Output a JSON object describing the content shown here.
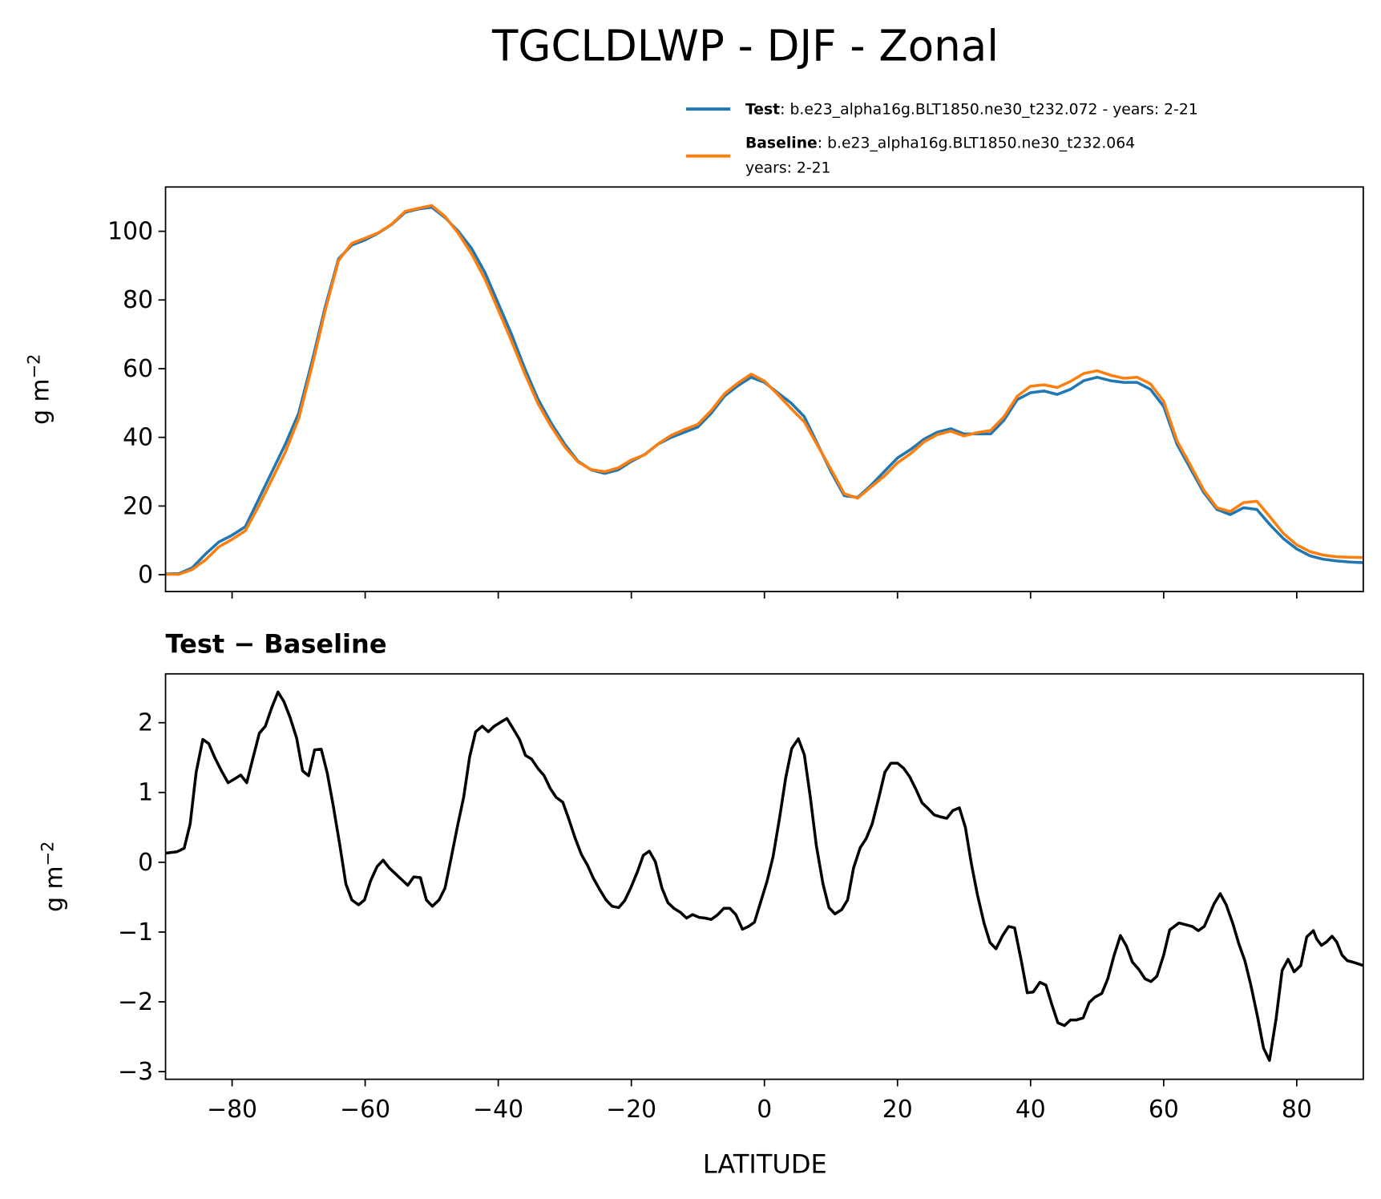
{
  "chart_data": [
    {
      "type": "line",
      "title": "TGCLDLWP - DJF - Zonal",
      "ylabel": "g m",
      "ylabel_exponent": "−2",
      "x": [
        -90,
        -88,
        -86,
        -84,
        -82,
        -80,
        -78,
        -76,
        -74,
        -72,
        -70,
        -68,
        -66,
        -64,
        -62,
        -60,
        -58,
        -56,
        -54,
        -52,
        -50,
        -48,
        -46,
        -44,
        -42,
        -40,
        -38,
        -36,
        -34,
        -32,
        -30,
        -28,
        -26,
        -24,
        -22,
        -20,
        -18,
        -16,
        -14,
        -12,
        -10,
        -8,
        -6,
        -4,
        -2,
        0,
        2,
        4,
        6,
        8,
        10,
        12,
        14,
        16,
        18,
        20,
        22,
        24,
        26,
        28,
        30,
        32,
        34,
        36,
        38,
        40,
        42,
        44,
        46,
        48,
        50,
        52,
        54,
        56,
        58,
        60,
        62,
        64,
        66,
        68,
        70,
        72,
        74,
        76,
        78,
        80,
        82,
        84,
        86,
        88,
        90
      ],
      "series": [
        {
          "name": "Test",
          "legend_detail": [
            ": b.e23_alpha16g.BLT1850.ne30_t232.072 - years: 2-21"
          ],
          "color": "#1f77b4",
          "values": [
            0.2,
            0.3,
            2,
            6,
            9.5,
            11.5,
            14,
            22,
            30,
            38,
            47,
            62,
            78,
            92,
            96,
            97.5,
            99.5,
            102,
            105.5,
            106.5,
            107,
            104,
            100,
            95,
            88,
            79,
            70,
            60,
            51,
            44,
            38,
            33,
            30.5,
            29.5,
            30.5,
            33,
            35,
            38,
            40,
            41.5,
            43,
            47,
            52,
            55,
            57.5,
            56,
            53,
            50,
            46,
            38,
            30,
            23,
            22.5,
            26,
            30,
            34,
            36.5,
            39.5,
            41.5,
            42.5,
            41,
            41,
            41,
            45,
            51,
            53,
            53.5,
            52.5,
            54,
            56.5,
            57.5,
            56.5,
            56,
            56,
            54,
            49,
            38,
            31,
            24,
            19,
            17.5,
            19.5,
            19,
            14.5,
            10.5,
            7.5,
            5.5,
            4.5,
            4,
            3.7,
            3.5
          ]
        },
        {
          "name": "Baseline",
          "legend_detail": [
            ": b.e23_alpha16g.BLT1850.ne30_t232.064",
            "years: 2-21"
          ],
          "color": "#ff7f0e",
          "values": [
            0.1,
            0.1,
            1.5,
            4.3,
            8.1,
            10.3,
            12.8,
            20,
            27.8,
            35.7,
            45.4,
            60.6,
            77,
            91.5,
            96.5,
            98,
            99.6,
            102.1,
            105.8,
            106.7,
            107.5,
            104.3,
            99.4,
            93.4,
            86.1,
            77.1,
            68,
            58.5,
            49.7,
            43,
            37.2,
            32.8,
            30.6,
            30,
            31.1,
            33.4,
            34.9,
            38.1,
            40.6,
            42.3,
            43.8,
            47.8,
            52.7,
            55.8,
            58.4,
            56.4,
            52.5,
            48.4,
            44.5,
            37.6,
            30.7,
            23.6,
            22.3,
            25.5,
            28.7,
            32.6,
            35.3,
            38.7,
            40.8,
            41.8,
            40.4,
            41.4,
            42,
            46,
            52,
            54.9,
            55.3,
            54.5,
            56.3,
            58.6,
            59.4,
            58.1,
            57.2,
            57.5,
            55.6,
            50.5,
            39,
            32,
            24.7,
            19.5,
            18.4,
            21,
            21.4,
            16.8,
            12,
            8.7,
            6.7,
            5.7,
            5.2,
            5.1,
            5
          ]
        }
      ],
      "xlim": [
        -90,
        90
      ],
      "xticks": [
        -80,
        -60,
        -40,
        -20,
        0,
        20,
        40,
        60,
        80
      ],
      "ylim": [
        -4.9,
        112.9
      ],
      "yticks": [
        0,
        20,
        40,
        60,
        80,
        100
      ]
    },
    {
      "type": "line",
      "title": "Test − Baseline",
      "xlabel": "LATITUDE",
      "ylabel": "g m",
      "ylabel_exponent": "−2",
      "x": [
        -90,
        -88.3,
        -87.2,
        -86.3,
        -85.4,
        -84.4,
        -83.5,
        -82.6,
        -81.6,
        -80.6,
        -79.7,
        -78.7,
        -77.8,
        -76.9,
        -75.9,
        -75,
        -74.1,
        -73.1,
        -72.2,
        -71.3,
        -70.3,
        -69.4,
        -68.5,
        -67.6,
        -66.6,
        -65.7,
        -64.8,
        -63.8,
        -62.9,
        -62,
        -61,
        -60.1,
        -59.2,
        -58.2,
        -57.3,
        -56.4,
        -55.5,
        -54.5,
        -53.6,
        -52.7,
        -51.7,
        -50.8,
        -49.9,
        -48.9,
        -48,
        -47.1,
        -46.1,
        -45.2,
        -44.3,
        -43.4,
        -42.4,
        -41.5,
        -40.6,
        -39.6,
        -38.7,
        -37.8,
        -36.8,
        -35.9,
        -35,
        -34,
        -33.1,
        -32.2,
        -31.3,
        -30.3,
        -29.4,
        -28.5,
        -27.5,
        -26.6,
        -25.7,
        -24.7,
        -23.8,
        -22.9,
        -21.9,
        -21,
        -20.1,
        -19.1,
        -18.2,
        -17.3,
        -16.4,
        -15.4,
        -14.5,
        -13.6,
        -12.6,
        -11.7,
        -10.8,
        -9.8,
        -8.9,
        -8,
        -7,
        -6.1,
        -5.2,
        -4.3,
        -3.3,
        -2.4,
        -1.5,
        -0.5,
        0.4,
        1.3,
        2.3,
        3.2,
        4.1,
        5.1,
        6,
        6.9,
        7.8,
        8.8,
        9.7,
        10.6,
        11.6,
        12.5,
        13.4,
        14.4,
        15.3,
        16.2,
        17.2,
        18.1,
        19,
        20,
        20.9,
        21.8,
        22.7,
        23.7,
        24.6,
        25.5,
        26.5,
        27.4,
        28.3,
        29.3,
        30.2,
        31.1,
        32,
        33,
        33.9,
        34.8,
        35.8,
        36.7,
        37.6,
        38.6,
        39.5,
        40.4,
        41.4,
        42.3,
        43.2,
        44.1,
        45.1,
        46,
        46.9,
        47.9,
        48.8,
        49.7,
        50.7,
        51.6,
        52.5,
        53.5,
        54.4,
        55.3,
        56.3,
        57.2,
        58.1,
        59,
        60,
        60.9,
        62.3,
        64.3,
        65.2,
        66.1,
        67.6,
        68.5,
        69.4,
        70.4,
        71.3,
        72.2,
        73.1,
        74.1,
        75,
        75.9,
        76.9,
        77.8,
        78.7,
        79.6,
        80.6,
        81.5,
        82.5,
        83,
        83.7,
        84.5,
        85.3,
        86,
        86.8,
        87.6,
        88.4,
        90
      ],
      "series": [
        {
          "name": "Test − Baseline",
          "color": "#000000",
          "values": [
            0.13,
            0.15,
            0.2,
            0.55,
            1.29,
            1.76,
            1.7,
            1.5,
            1.31,
            1.14,
            1.19,
            1.25,
            1.14,
            1.48,
            1.85,
            1.95,
            2.2,
            2.44,
            2.3,
            2.08,
            1.78,
            1.31,
            1.24,
            1.61,
            1.62,
            1.28,
            0.81,
            0.24,
            -0.31,
            -0.54,
            -0.61,
            -0.54,
            -0.27,
            -0.06,
            0.03,
            -0.08,
            -0.16,
            -0.25,
            -0.33,
            -0.21,
            -0.22,
            -0.54,
            -0.63,
            -0.54,
            -0.37,
            0.05,
            0.53,
            0.93,
            1.51,
            1.87,
            1.95,
            1.87,
            1.95,
            2.01,
            2.06,
            1.92,
            1.76,
            1.53,
            1.48,
            1.34,
            1.24,
            1.06,
            0.93,
            0.86,
            0.62,
            0.36,
            0.11,
            -0.04,
            -0.23,
            -0.4,
            -0.54,
            -0.63,
            -0.65,
            -0.55,
            -0.37,
            -0.14,
            0.1,
            0.16,
            0.01,
            -0.37,
            -0.58,
            -0.66,
            -0.72,
            -0.8,
            -0.75,
            -0.79,
            -0.8,
            -0.82,
            -0.75,
            -0.66,
            -0.66,
            -0.75,
            -0.96,
            -0.92,
            -0.86,
            -0.55,
            -0.27,
            0.08,
            0.65,
            1.21,
            1.63,
            1.77,
            1.54,
            0.93,
            0.24,
            -0.31,
            -0.65,
            -0.74,
            -0.68,
            -0.54,
            -0.08,
            0.21,
            0.34,
            0.55,
            0.93,
            1.29,
            1.42,
            1.42,
            1.35,
            1.23,
            1.06,
            0.85,
            0.77,
            0.68,
            0.65,
            0.63,
            0.74,
            0.78,
            0.5,
            -0.02,
            -0.46,
            -0.87,
            -1.15,
            -1.24,
            -1.05,
            -0.92,
            -0.94,
            -1.41,
            -1.87,
            -1.86,
            -1.72,
            -1.76,
            -2.04,
            -2.3,
            -2.34,
            -2.26,
            -2.26,
            -2.23,
            -2.01,
            -1.93,
            -1.88,
            -1.67,
            -1.35,
            -1.05,
            -1.2,
            -1.43,
            -1.54,
            -1.67,
            -1.71,
            -1.63,
            -1.33,
            -0.97,
            -0.87,
            -0.92,
            -0.98,
            -0.92,
            -0.59,
            -0.45,
            -0.61,
            -0.88,
            -1.17,
            -1.41,
            -1.76,
            -2.21,
            -2.66,
            -2.84,
            -2.24,
            -1.55,
            -1.39,
            -1.57,
            -1.48,
            -1.07,
            -0.98,
            -1.1,
            -1.19,
            -1.14,
            -1.06,
            -1.14,
            -1.33,
            -1.41,
            -1.43,
            -1.48
          ]
        }
      ],
      "xlim": [
        -90,
        90
      ],
      "xticks": [
        {
          "value": -80,
          "label": "−80"
        },
        {
          "value": -60,
          "label": "−60"
        },
        {
          "value": -40,
          "label": "−40"
        },
        {
          "value": -20,
          "label": "−20"
        },
        0,
        20,
        40,
        60,
        80
      ],
      "ylim": [
        -3.11,
        2.7
      ],
      "yticks": [
        {
          "value": -3,
          "label": "−3"
        },
        {
          "value": -2,
          "label": "−2"
        },
        {
          "value": -1,
          "label": "−1"
        },
        0,
        1,
        2
      ]
    }
  ]
}
